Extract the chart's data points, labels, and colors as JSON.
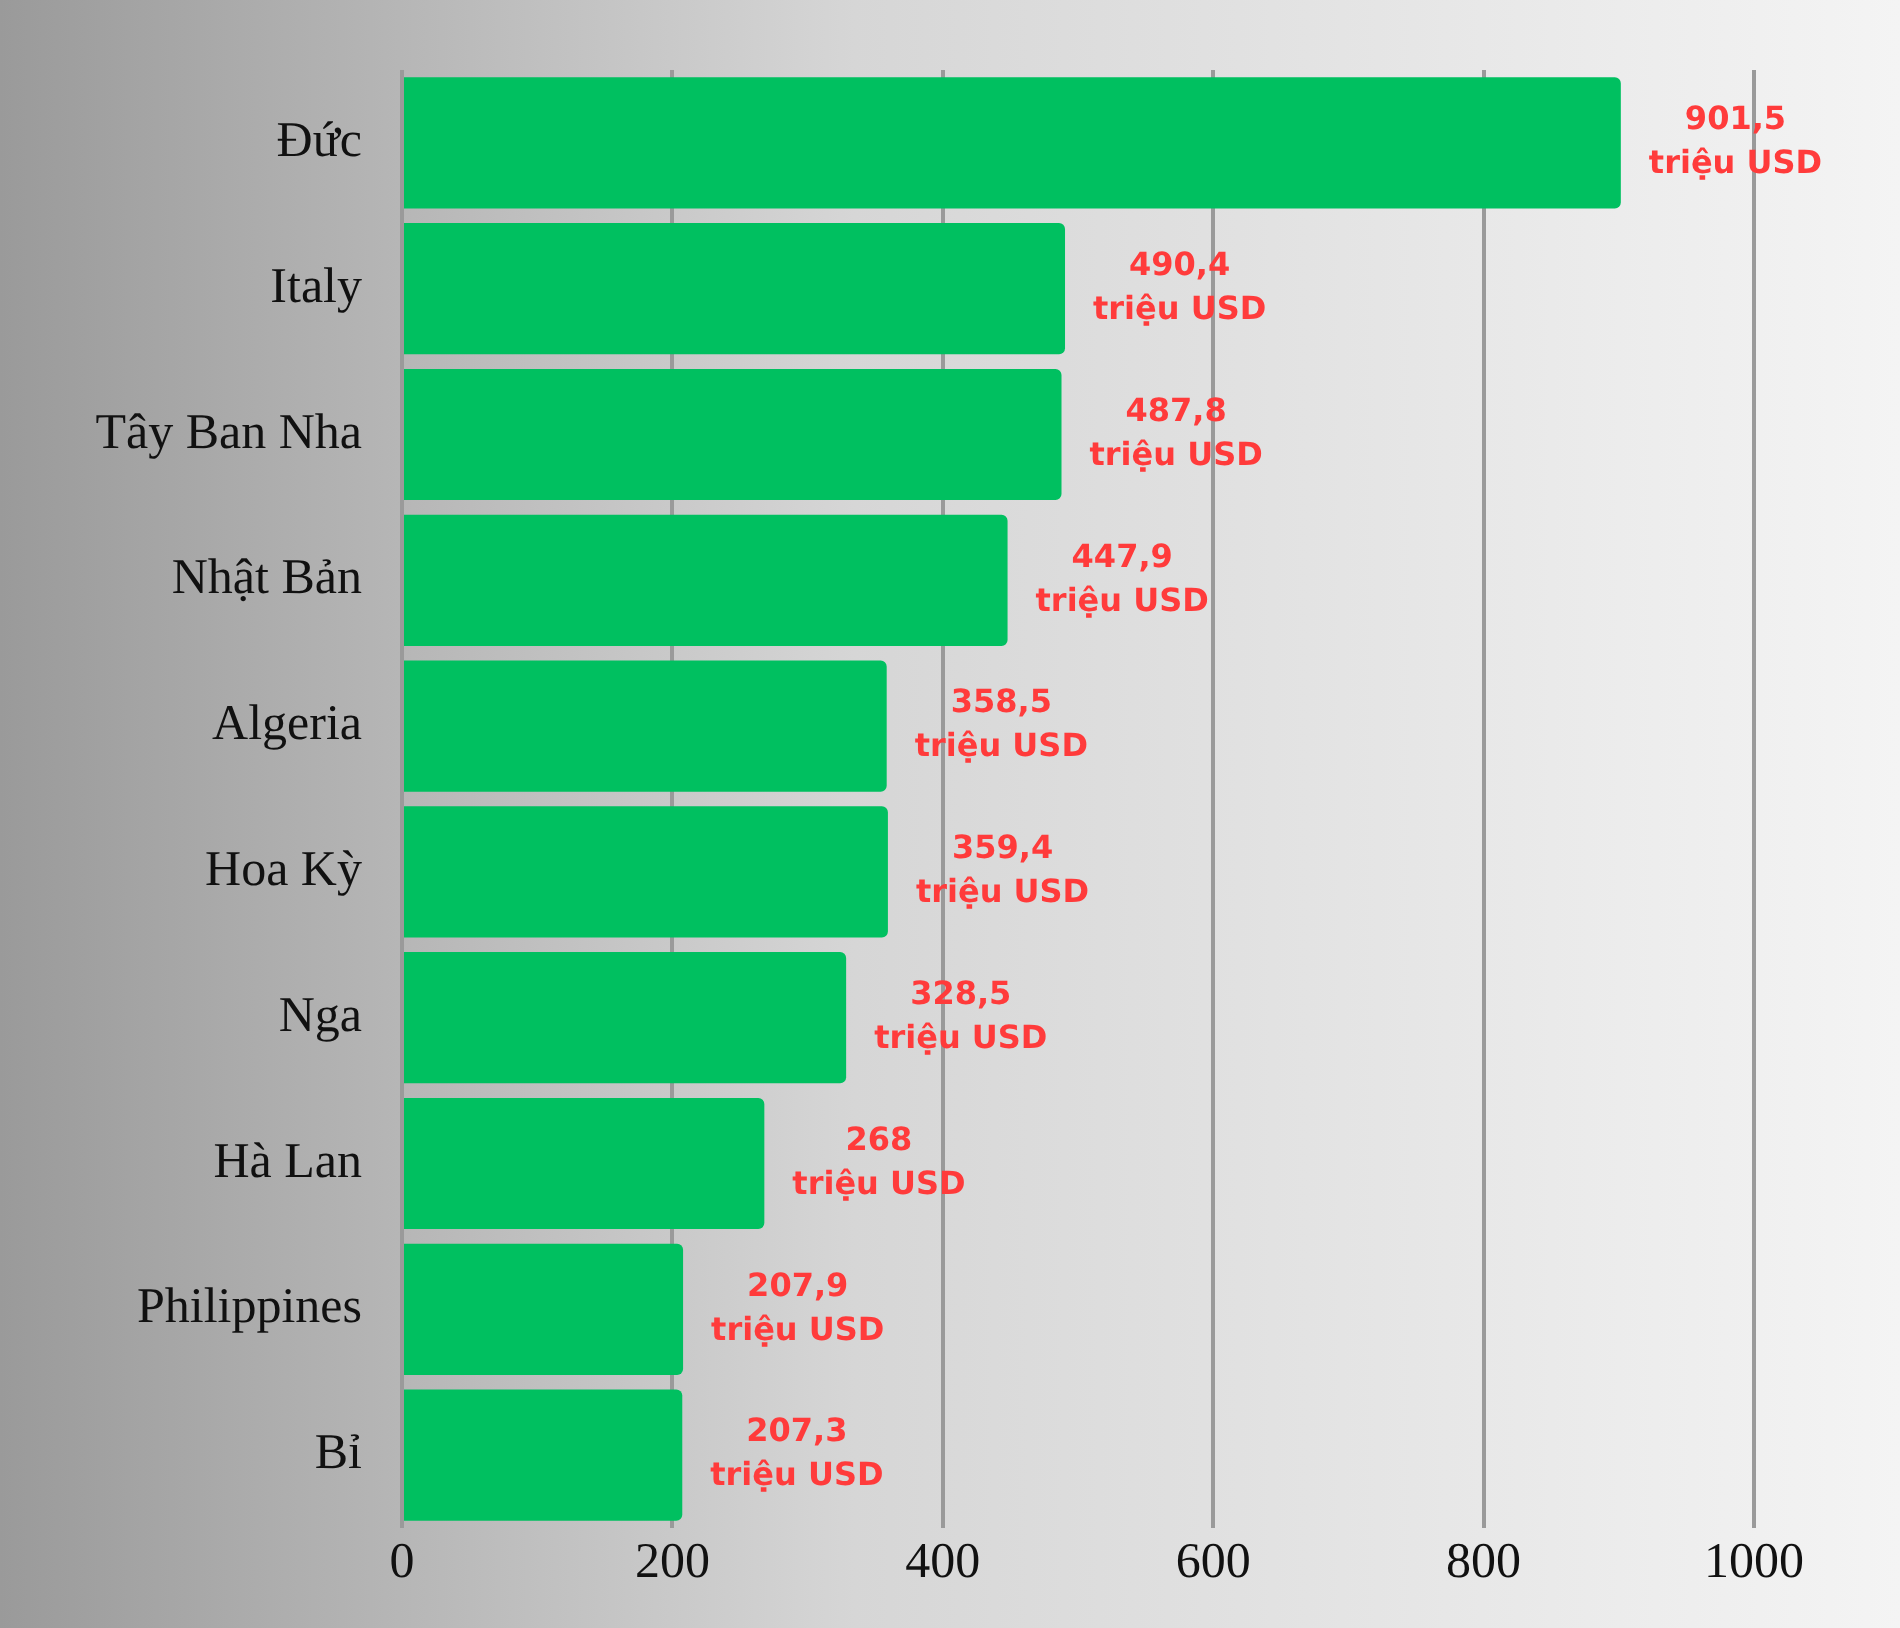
{
  "chart_data": {
    "type": "bar",
    "orientation": "horizontal",
    "categories": [
      "Đức",
      "Italy",
      "Tây Ban Nha",
      "Nhật Bản",
      "Algeria",
      "Hoa Kỳ",
      "Nga",
      "Hà Lan",
      "Philippines",
      "Bỉ"
    ],
    "values": [
      901.5,
      490.4,
      487.8,
      447.9,
      358.5,
      359.4,
      328.5,
      268,
      207.9,
      207.3
    ],
    "value_labels": [
      "901,5\ntriệu USD",
      "490,4\ntriệu USD",
      "487,8\ntriệu USD",
      "447,9\ntriệu USD",
      "358,5\ntriệu USD",
      "359,4\ntriệu USD",
      "328,5\ntriệu USD",
      "268\ntriệu USD",
      "207,9\ntriệu USD",
      "207,3\ntriệu USD"
    ],
    "color": "#00c060",
    "xlim": [
      0,
      1000
    ],
    "xticks": [
      0,
      200,
      400,
      600,
      800,
      1000
    ],
    "grid": "x",
    "legend": false
  }
}
